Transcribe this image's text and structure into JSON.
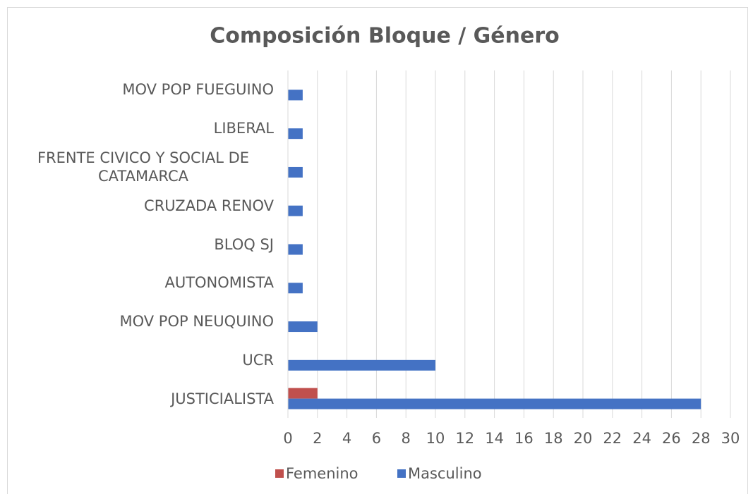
{
  "chart_data": {
    "type": "barh",
    "title": "Composición Bloque / Género",
    "categories": [
      "JUSTICIALISTA",
      "UCR",
      "MOV POP NEUQUINO",
      "AUTONOMISTA",
      "BLOQ SJ",
      "CRUZADA RENOV",
      "FRENTE CIVICO Y SOCIAL DE CATAMARCA",
      "LIBERAL",
      "MOV POP FUEGUINO"
    ],
    "series": [
      {
        "name": "Femenino",
        "color": "#c0504d",
        "values": [
          2,
          0,
          0,
          0,
          0,
          0,
          0,
          0,
          0
        ]
      },
      {
        "name": "Masculino",
        "color": "#4472c4",
        "values": [
          28,
          10,
          2,
          1,
          1,
          1,
          1,
          1,
          1
        ]
      }
    ],
    "xlim": [
      0,
      30
    ],
    "xticks": [
      0,
      2,
      4,
      6,
      8,
      10,
      12,
      14,
      16,
      18,
      20,
      22,
      24,
      26,
      28,
      30
    ],
    "grid": true,
    "legend": "bottom"
  }
}
